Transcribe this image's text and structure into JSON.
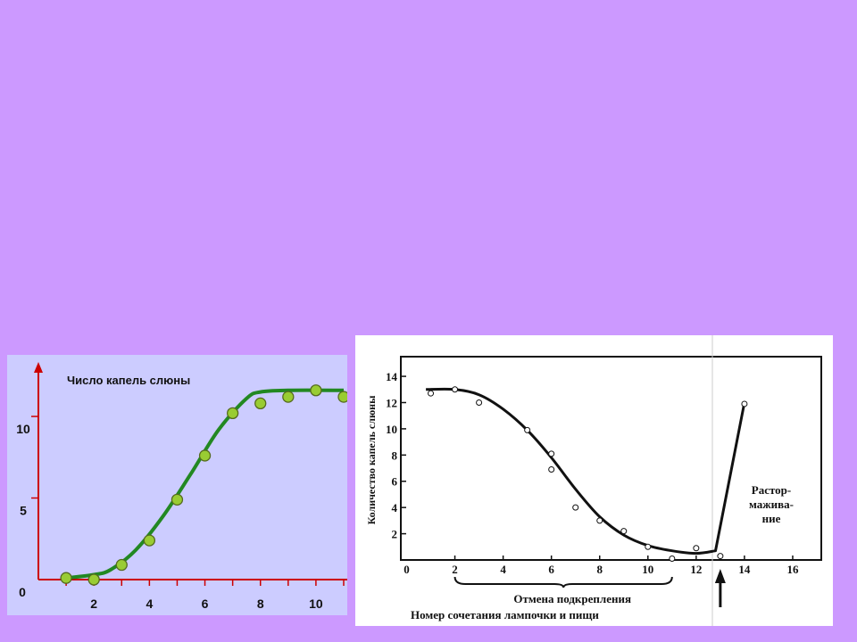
{
  "chart_data": [
    {
      "type": "scatter",
      "title": "Число капель слюны",
      "xlabel": "",
      "ylabel": "",
      "xlim": [
        0,
        11
      ],
      "ylim": [
        0,
        13.5
      ],
      "x_ticks": [
        2,
        4,
        6,
        8,
        10
      ],
      "y_ticks": [
        5,
        10
      ],
      "origin_label": "0",
      "points": [
        {
          "x": 1,
          "y": 0.1
        },
        {
          "x": 2,
          "y": 0
        },
        {
          "x": 3,
          "y": 0.9
        },
        {
          "x": 4,
          "y": 2.4
        },
        {
          "x": 5,
          "y": 4.9
        },
        {
          "x": 6,
          "y": 7.6
        },
        {
          "x": 7,
          "y": 10.2
        },
        {
          "x": 8,
          "y": 10.8
        },
        {
          "x": 9,
          "y": 11.2
        },
        {
          "x": 10,
          "y": 11.6
        },
        {
          "x": 11,
          "y": 11.2
        }
      ],
      "curve": [
        {
          "x": 1,
          "y": 0.1
        },
        {
          "x": 2,
          "y": 0.3
        },
        {
          "x": 2.6,
          "y": 0.6
        },
        {
          "x": 3.5,
          "y": 1.8
        },
        {
          "x": 4.5,
          "y": 3.9
        },
        {
          "x": 5.5,
          "y": 6.5
        },
        {
          "x": 6.5,
          "y": 9.2
        },
        {
          "x": 7.5,
          "y": 11.1
        },
        {
          "x": 8,
          "y": 11.5
        },
        {
          "x": 9,
          "y": 11.6
        },
        {
          "x": 11,
          "y": 11.6
        }
      ],
      "colors": {
        "axis": "#cc0000",
        "curve": "#228822",
        "marker": "#99cc33"
      }
    },
    {
      "type": "scatter",
      "title": "",
      "xlabel": "Номер сочетания лампочки и пищи",
      "ylabel": "Количество капель слюны",
      "xlim": [
        0,
        17
      ],
      "ylim": [
        0,
        15.5
      ],
      "x_ticks": [
        0,
        2,
        4,
        6,
        8,
        10,
        12,
        14,
        16
      ],
      "y_ticks": [
        2,
        4,
        6,
        8,
        10,
        12,
        14
      ],
      "points": [
        {
          "x": 1,
          "y": 12.7
        },
        {
          "x": 2,
          "y": 13
        },
        {
          "x": 3,
          "y": 12
        },
        {
          "x": 5,
          "y": 9.9
        },
        {
          "x": 6,
          "y": 8.1
        },
        {
          "x": 6,
          "y": 6.9
        },
        {
          "x": 7,
          "y": 4
        },
        {
          "x": 8,
          "y": 3
        },
        {
          "x": 9,
          "y": 2.2
        },
        {
          "x": 10,
          "y": 1
        },
        {
          "x": 11,
          "y": 0.1
        },
        {
          "x": 12,
          "y": 0.9
        },
        {
          "x": 13,
          "y": 0.3
        },
        {
          "x": 14,
          "y": 11.9
        }
      ],
      "curve": [
        {
          "x": 0.8,
          "y": 13
        },
        {
          "x": 2,
          "y": 13
        },
        {
          "x": 3,
          "y": 12.6
        },
        {
          "x": 4,
          "y": 11.5
        },
        {
          "x": 5,
          "y": 9.9
        },
        {
          "x": 6,
          "y": 7.8
        },
        {
          "x": 7,
          "y": 5.4
        },
        {
          "x": 8,
          "y": 3.3
        },
        {
          "x": 9,
          "y": 1.9
        },
        {
          "x": 10,
          "y": 1.1
        },
        {
          "x": 11,
          "y": 0.7
        },
        {
          "x": 12,
          "y": 0.5
        },
        {
          "x": 12.8,
          "y": 0.7
        },
        {
          "x": 14,
          "y": 12
        }
      ],
      "annotations": {
        "extinction": "Отмена подкрепления",
        "recovery_lines": [
          "Растор-",
          "мажива-",
          "ние"
        ]
      },
      "brace_x": [
        2,
        11
      ],
      "arrow_x": 13,
      "colors": {
        "axis": "#111111",
        "curve": "#111111",
        "marker": "#ffffff"
      }
    }
  ]
}
